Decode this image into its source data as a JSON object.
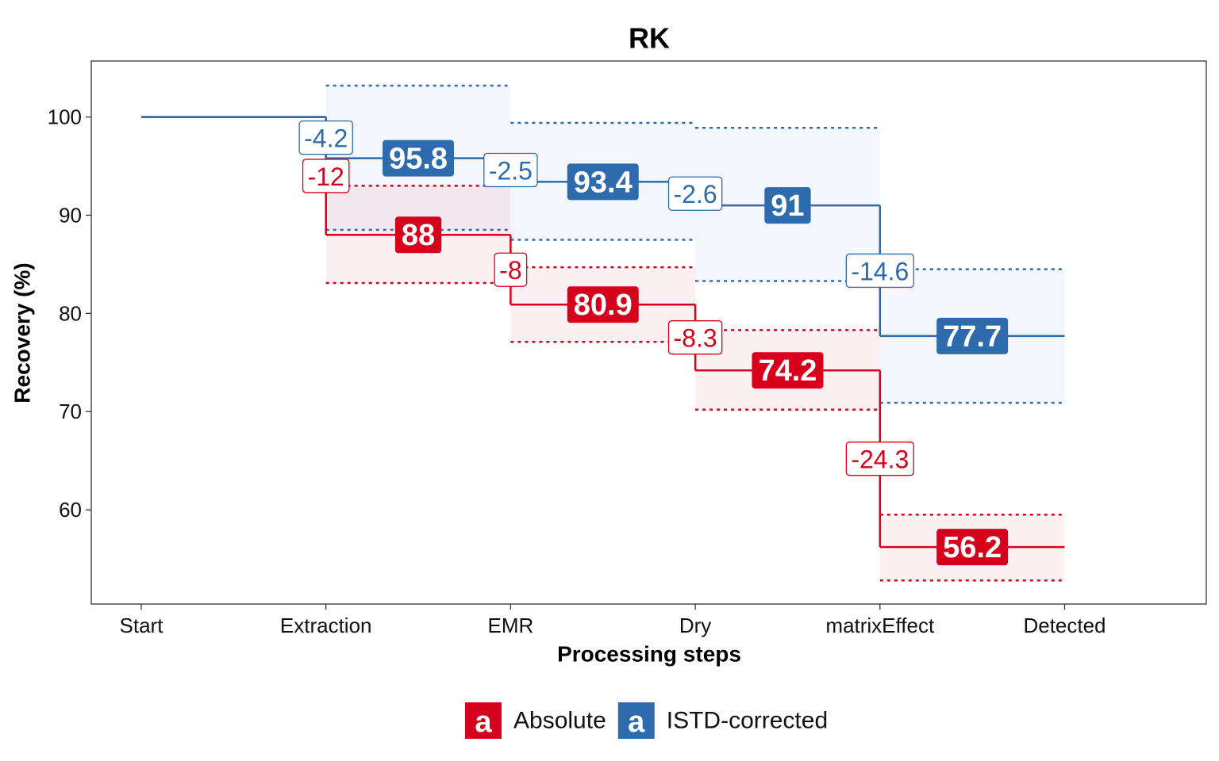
{
  "chart_data": {
    "type": "step",
    "title": "RK",
    "x_label": "Processing steps",
    "y_label": "Recovery (%)",
    "categories": [
      "Start",
      "Extraction",
      "EMR",
      "Dry",
      "matrixEffect",
      "Detected"
    ],
    "ylim": [
      50.4,
      105.7
    ],
    "yticks": [
      60,
      70,
      80,
      90,
      100
    ],
    "legend_key": "a",
    "legend_position": "bottom",
    "series": [
      {
        "name": "Absolute",
        "color": "#d6001c",
        "values": [
          100,
          88,
          80.9,
          74.2,
          56.2,
          null
        ],
        "changes": [
          null,
          -12,
          -8,
          -8.3,
          -24.3,
          null
        ],
        "lower": [
          null,
          83.1,
          77.1,
          70.2,
          52.8,
          null
        ],
        "upper": [
          null,
          93.0,
          84.7,
          78.3,
          59.5,
          null
        ]
      },
      {
        "name": "ISTD-corrected",
        "color": "#2e6bad",
        "values": [
          100,
          95.8,
          93.4,
          91,
          77.7,
          null
        ],
        "changes": [
          null,
          -4.2,
          -2.5,
          -2.6,
          -14.6,
          null
        ],
        "lower": [
          null,
          88.5,
          87.5,
          83.3,
          70.9,
          null
        ],
        "upper": [
          null,
          103.2,
          99.4,
          98.9,
          84.5,
          null
        ]
      }
    ]
  }
}
